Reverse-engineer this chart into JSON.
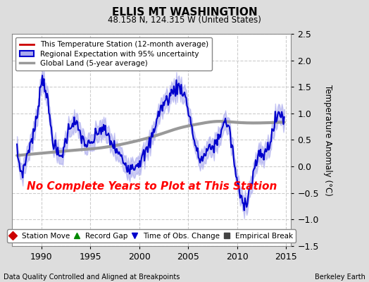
{
  "title": "ELLIS MT WASHINGTION",
  "subtitle": "48.158 N, 124.315 W (United States)",
  "ylabel": "Temperature Anomaly (°C)",
  "ylim": [
    -1.5,
    2.5
  ],
  "xlim": [
    1987.0,
    2015.5
  ],
  "xticks": [
    1990,
    1995,
    2000,
    2005,
    2010,
    2015
  ],
  "yticks": [
    -1.5,
    -1.0,
    -0.5,
    0.0,
    0.5,
    1.0,
    1.5,
    2.0,
    2.5
  ],
  "bg_color": "#dddddd",
  "plot_bg_color": "#ffffff",
  "grid_color": "#cccccc",
  "red_line_color": "#cc0000",
  "blue_line_color": "#0000cc",
  "blue_fill_color": "#aaaaee",
  "gray_line_color": "#999999",
  "annotation_text": "No Complete Years to Plot at This Station",
  "annotation_color": "red",
  "footer_left": "Data Quality Controlled and Aligned at Breakpoints",
  "footer_right": "Berkeley Earth",
  "legend_entries": [
    "This Temperature Station (12-month average)",
    "Regional Expectation with 95% uncertainty",
    "Global Land (5-year average)"
  ],
  "bottom_legend": [
    {
      "marker": "D",
      "color": "#cc0000",
      "label": "Station Move"
    },
    {
      "marker": "^",
      "color": "#008800",
      "label": "Record Gap"
    },
    {
      "marker": "v",
      "color": "#0000cc",
      "label": "Time of Obs. Change"
    },
    {
      "marker": "s",
      "color": "#444444",
      "label": "Empirical Break"
    }
  ]
}
